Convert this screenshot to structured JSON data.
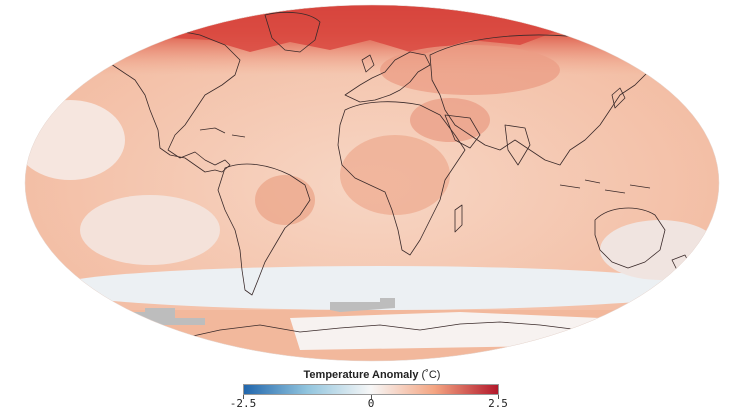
{
  "legend": {
    "title": "Temperature Anomaly",
    "unit": "(˚C)",
    "ticks": [
      "-2.5",
      "0",
      "2.5"
    ],
    "range": [
      -2.5,
      2.5
    ],
    "colors": [
      "#2166ac",
      "#92c5de",
      "#f7f7f7",
      "#f4a582",
      "#b2182b"
    ]
  },
  "map": {
    "projection": "Robinson",
    "ocean_color": "#f6d2c0",
    "no_data_color": "#bdbdbd",
    "coastline_color": "#3a2a2a"
  }
}
